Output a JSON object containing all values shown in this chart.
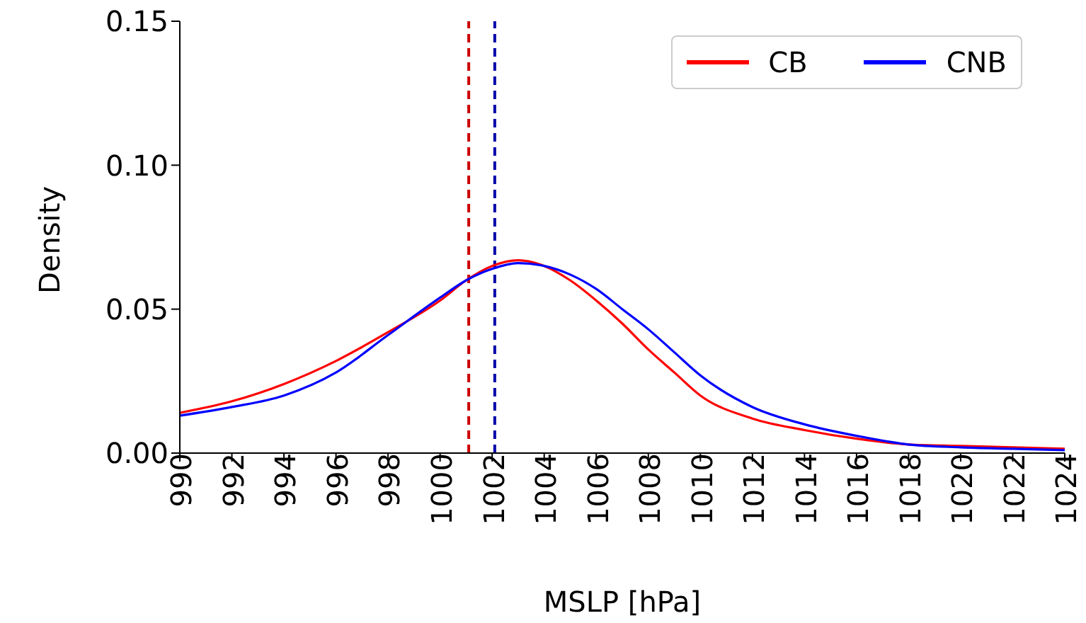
{
  "chart_data": {
    "type": "line",
    "xlabel": "MSLP [hPa]",
    "ylabel": "Density",
    "xlim": [
      990,
      1024
    ],
    "xticks": [
      990,
      992,
      994,
      996,
      998,
      1000,
      1002,
      1004,
      1006,
      1008,
      1010,
      1012,
      1014,
      1016,
      1018,
      1020,
      1022,
      1024
    ],
    "ylim": [
      0,
      0.15
    ],
    "yticks": [
      {
        "value": 0,
        "label": "0.00"
      },
      {
        "value": 0.05,
        "label": "0.05"
      },
      {
        "value": 0.1,
        "label": "0.10"
      },
      {
        "value": 0.15,
        "label": "0.15"
      }
    ],
    "x": [
      990,
      992,
      994,
      996,
      998,
      1000,
      1001,
      1002,
      1003,
      1004,
      1005,
      1006,
      1007,
      1008,
      1009,
      1010,
      1012,
      1014,
      1016,
      1018,
      1020,
      1022,
      1024
    ],
    "series": [
      {
        "name": "CB",
        "color": "#ff0000",
        "values": [
          0.014,
          0.018,
          0.024,
          0.032,
          0.042,
          0.053,
          0.06,
          0.065,
          0.067,
          0.065,
          0.06,
          0.053,
          0.045,
          0.036,
          0.028,
          0.02,
          0.012,
          0.008,
          0.005,
          0.003,
          0.0025,
          0.002,
          0.0015
        ]
      },
      {
        "name": "CNB",
        "color": "#0000ff",
        "values": [
          0.013,
          0.016,
          0.02,
          0.028,
          0.041,
          0.054,
          0.06,
          0.064,
          0.066,
          0.065,
          0.062,
          0.057,
          0.05,
          0.043,
          0.035,
          0.027,
          0.016,
          0.01,
          0.006,
          0.003,
          0.002,
          0.0015,
          0.001
        ]
      }
    ],
    "ref_lines": [
      {
        "axis": "x",
        "value": 1001.1,
        "color": "#cc0000",
        "line_style": "dashed"
      },
      {
        "axis": "x",
        "value": 1002.1,
        "color": "#0000aa",
        "line_style": "dashed"
      }
    ],
    "legend": "top right",
    "grid": false,
    "marker": "none",
    "line_style": "solid"
  }
}
